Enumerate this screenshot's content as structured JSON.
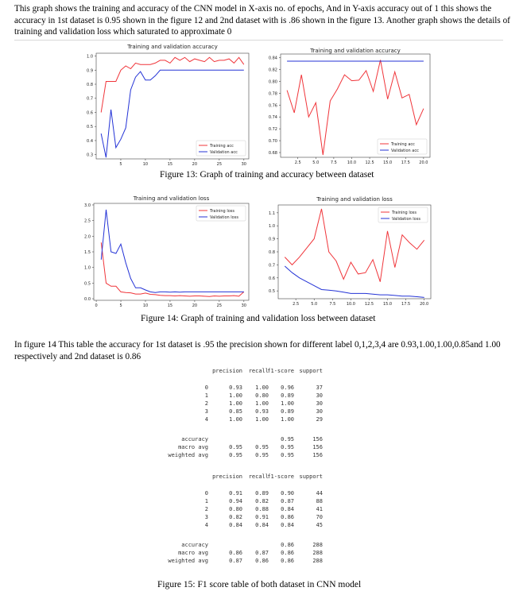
{
  "para1": "This graph shows the training and accuracy of the CNN model in X-axis no. of epochs, And in Y-axis accuracy out of 1 this shows the accuracy in 1st dataset is 0.95 shown in the figure 12 and 2nd dataset with is .86 shown in the figure 13. Another graph shows the details of training and validation loss which saturated to approximate 0",
  "caption13": "Figure 13: Graph of training and accuracy between dataset",
  "caption14": "Figure 14: Graph of training and validation loss between dataset",
  "para2": "In figure 14 This table the accuracy for 1st dataset is .95 the precision shown for different label 0,1,2,3,4 are 0.93,1.00,1.00,0.85and 1.00 respectively and 2nd dataset is 0.86",
  "caption15": "Figure 15:  F1 score table of both dataset in CNN model",
  "colors": {
    "train": "#f0353a",
    "val": "#2433d6"
  },
  "chart_data": [
    {
      "type": "line",
      "title": "Training and validation accuracy",
      "x": [
        1,
        2,
        3,
        4,
        5,
        6,
        7,
        8,
        9,
        10,
        11,
        12,
        13,
        14,
        15,
        16,
        17,
        18,
        19,
        20,
        21,
        22,
        23,
        24,
        25,
        26,
        27,
        28,
        29,
        30
      ],
      "xticks": [
        5,
        10,
        15,
        20,
        25,
        30
      ],
      "yticks": [
        0.3,
        0.4,
        0.5,
        0.6,
        0.7,
        0.8,
        0.9,
        1.0
      ],
      "yticklabels": [
        "0.3",
        "0.4",
        "0.5",
        "0.6",
        "0.7",
        "0.8",
        "0.9",
        "1.0"
      ],
      "xlim": [
        0,
        31
      ],
      "ylim": [
        0.27,
        1.02
      ],
      "legend_position": "lower-right",
      "series": [
        {
          "name": "Training acc",
          "values": [
            0.6,
            0.82,
            0.82,
            0.82,
            0.9,
            0.93,
            0.91,
            0.95,
            0.94,
            0.94,
            0.94,
            0.95,
            0.97,
            0.97,
            0.95,
            0.99,
            0.97,
            0.99,
            0.96,
            0.98,
            0.97,
            0.96,
            0.99,
            0.96,
            0.97,
            0.97,
            0.98,
            0.95,
            0.99,
            0.94
          ]
        },
        {
          "name": "Validation acc",
          "values": [
            0.45,
            0.28,
            0.62,
            0.35,
            0.41,
            0.49,
            0.76,
            0.85,
            0.89,
            0.83,
            0.83,
            0.86,
            0.9,
            0.9,
            0.9,
            0.9,
            0.9,
            0.9,
            0.9,
            0.9,
            0.9,
            0.9,
            0.9,
            0.9,
            0.9,
            0.9,
            0.9,
            0.9,
            0.9,
            0.9
          ]
        }
      ]
    },
    {
      "type": "line",
      "title": "Training and validation accuracy",
      "x": [
        1,
        2,
        3,
        4,
        5,
        6,
        7,
        8,
        9,
        10,
        11,
        12,
        13,
        14,
        15,
        16,
        17,
        18,
        19,
        20
      ],
      "xticks": [
        2.5,
        5.0,
        7.5,
        10.0,
        12.5,
        15.0,
        17.5,
        20.0
      ],
      "xticklabels": [
        "2.5",
        "5.0",
        "7.5",
        "10.0",
        "12.5",
        "15.0",
        "17.5",
        "20.0"
      ],
      "yticks": [
        0.68,
        0.7,
        0.72,
        0.74,
        0.76,
        0.78,
        0.8,
        0.82,
        0.84
      ],
      "yticklabels": [
        "0.68",
        "0.70",
        "0.72",
        "0.74",
        "0.76",
        "0.78",
        "0.80",
        "0.82",
        "0.84"
      ],
      "xlim": [
        0.1,
        20.9
      ],
      "ylim": [
        0.672,
        0.846
      ],
      "legend_position": "lower-right",
      "series": [
        {
          "name": "Training acc",
          "values": [
            0.785,
            0.747,
            0.811,
            0.74,
            0.764,
            0.676,
            0.767,
            0.787,
            0.811,
            0.801,
            0.802,
            0.818,
            0.783,
            0.836,
            0.77,
            0.816,
            0.772,
            0.778,
            0.727,
            0.754
          ]
        },
        {
          "name": "Validation acc",
          "values": [
            0.834,
            0.834,
            0.834,
            0.834,
            0.834,
            0.834,
            0.834,
            0.834,
            0.834,
            0.834,
            0.834,
            0.834,
            0.834,
            0.834,
            0.834,
            0.834,
            0.834,
            0.834,
            0.834,
            0.834
          ]
        }
      ]
    },
    {
      "type": "line",
      "title": "Training and validation loss",
      "x": [
        1,
        2,
        3,
        4,
        5,
        6,
        7,
        8,
        9,
        10,
        11,
        12,
        13,
        14,
        15,
        16,
        17,
        18,
        19,
        20,
        21,
        22,
        23,
        24,
        25,
        26,
        27,
        28,
        29,
        30
      ],
      "xticks": [
        0,
        5,
        10,
        15,
        20,
        25,
        30
      ],
      "yticks": [
        0.0,
        0.5,
        1.0,
        1.5,
        2.0,
        2.5,
        3.0
      ],
      "yticklabels": [
        "0.0",
        "0.5",
        "1.0",
        "1.5",
        "2.0",
        "2.5",
        "3.0"
      ],
      "xlim": [
        -0.5,
        31
      ],
      "ylim": [
        -0.05,
        3.05
      ],
      "legend_position": "upper-right",
      "series": [
        {
          "name": "Training loss",
          "values": [
            1.8,
            0.5,
            0.4,
            0.4,
            0.22,
            0.2,
            0.19,
            0.15,
            0.15,
            0.18,
            0.14,
            0.13,
            0.11,
            0.1,
            0.1,
            0.09,
            0.1,
            0.09,
            0.08,
            0.09,
            0.09,
            0.08,
            0.07,
            0.09,
            0.08,
            0.09,
            0.09,
            0.1,
            0.08,
            0.22
          ]
        },
        {
          "name": "Validation loss",
          "values": [
            1.25,
            2.85,
            1.5,
            1.45,
            1.75,
            1.15,
            0.65,
            0.35,
            0.35,
            0.28,
            0.22,
            0.2,
            0.22,
            0.22,
            0.21,
            0.22,
            0.21,
            0.22,
            0.22,
            0.22,
            0.22,
            0.22,
            0.22,
            0.22,
            0.22,
            0.22,
            0.22,
            0.22,
            0.22,
            0.22
          ]
        }
      ]
    },
    {
      "type": "line",
      "title": "Training and validation loss",
      "x": [
        1,
        2,
        3,
        4,
        5,
        6,
        7,
        8,
        9,
        10,
        11,
        12,
        13,
        14,
        15,
        16,
        17,
        18,
        19,
        20
      ],
      "xticks": [
        2.5,
        5.0,
        7.5,
        10.0,
        12.5,
        15.0,
        17.5,
        20.0
      ],
      "xticklabels": [
        "2.5",
        "5.0",
        "7.5",
        "10.0",
        "12.5",
        "15.0",
        "17.5",
        "20.0"
      ],
      "yticks": [
        0.5,
        0.6,
        0.7,
        0.8,
        0.9,
        1.0,
        1.1
      ],
      "yticklabels": [
        "0.5",
        "0.6",
        "0.7",
        "0.8",
        "0.9",
        "1.0",
        "1.1"
      ],
      "xlim": [
        0.1,
        20.9
      ],
      "ylim": [
        0.44,
        1.16
      ],
      "legend_position": "upper-right",
      "series": [
        {
          "name": "Training loss",
          "values": [
            0.76,
            0.7,
            0.76,
            0.83,
            0.9,
            1.13,
            0.8,
            0.73,
            0.59,
            0.72,
            0.63,
            0.64,
            0.74,
            0.57,
            0.96,
            0.68,
            0.93,
            0.87,
            0.82,
            0.89
          ]
        },
        {
          "name": "Validation loss",
          "values": [
            0.69,
            0.64,
            0.6,
            0.57,
            0.54,
            0.51,
            0.505,
            0.5,
            0.49,
            0.48,
            0.48,
            0.48,
            0.475,
            0.47,
            0.47,
            0.465,
            0.46,
            0.46,
            0.455,
            0.45
          ]
        }
      ]
    }
  ],
  "report1": {
    "header": [
      "precision",
      "recall",
      "f1-score",
      "support"
    ],
    "rows": [
      [
        "0",
        "0.93",
        "1.00",
        "0.96",
        "37"
      ],
      [
        "1",
        "1.00",
        "0.80",
        "0.89",
        "30"
      ],
      [
        "2",
        "1.00",
        "1.00",
        "1.00",
        "30"
      ],
      [
        "3",
        "0.85",
        "0.93",
        "0.89",
        "30"
      ],
      [
        "4",
        "1.00",
        "1.00",
        "1.00",
        "29"
      ]
    ],
    "summary": [
      [
        "accuracy",
        "",
        "",
        "0.95",
        "156"
      ],
      [
        "macro avg",
        "0.95",
        "0.95",
        "0.95",
        "156"
      ],
      [
        "weighted avg",
        "0.95",
        "0.95",
        "0.95",
        "156"
      ]
    ]
  },
  "report2": {
    "header": [
      "precision",
      "recall",
      "f1-score",
      "support"
    ],
    "rows": [
      [
        "0",
        "0.91",
        "0.89",
        "0.90",
        "44"
      ],
      [
        "1",
        "0.94",
        "0.82",
        "0.87",
        "88"
      ],
      [
        "2",
        "0.80",
        "0.88",
        "0.84",
        "41"
      ],
      [
        "3",
        "0.82",
        "0.91",
        "0.86",
        "70"
      ],
      [
        "4",
        "0.84",
        "0.84",
        "0.84",
        "45"
      ]
    ],
    "summary": [
      [
        "accuracy",
        "",
        "",
        "0.86",
        "288"
      ],
      [
        "macro avg",
        "0.86",
        "0.87",
        "0.86",
        "288"
      ],
      [
        "weighted avg",
        "0.87",
        "0.86",
        "0.86",
        "288"
      ]
    ]
  }
}
